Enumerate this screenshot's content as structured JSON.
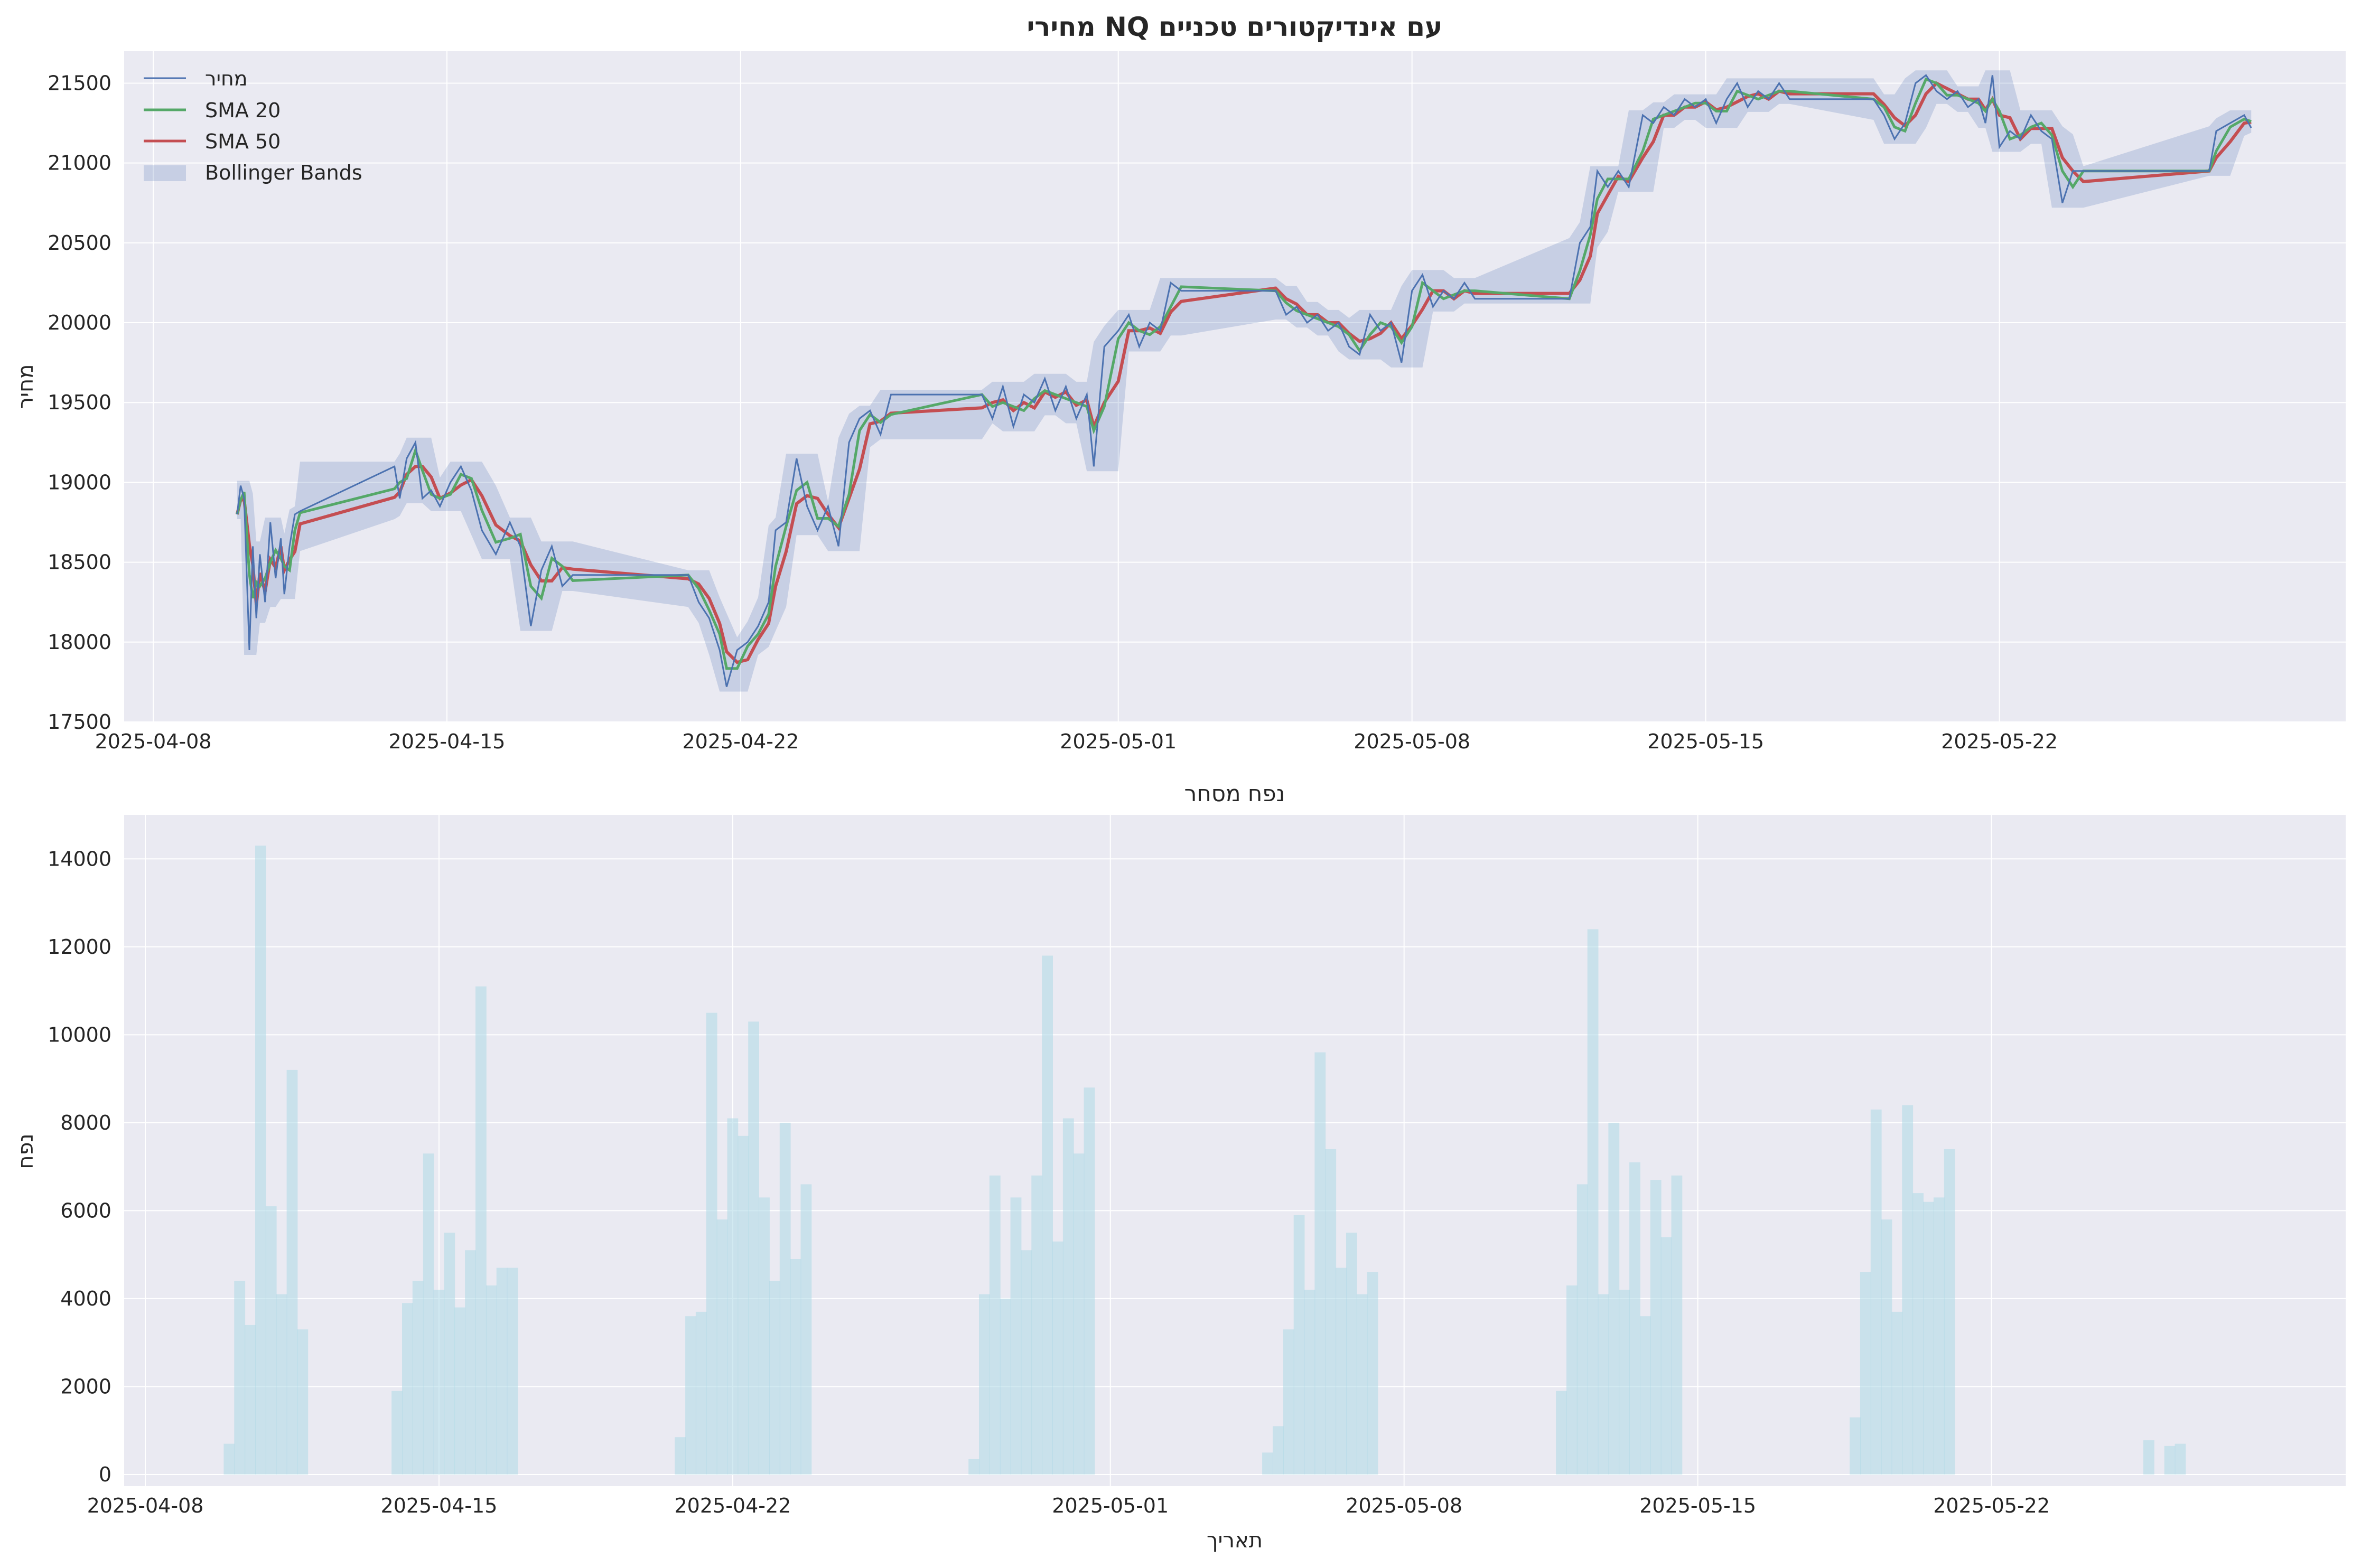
{
  "chart_data": [
    {
      "type": "line",
      "title": "מחירי NQ עם אינדיקטורים טכניים",
      "xlabel": "",
      "ylabel": "מחיר",
      "x_range": [
        "2025-04-08",
        "2025-05-30"
      ],
      "ylim": [
        17500,
        21700
      ],
      "x_ticks": [
        "2025-04-08",
        "2025-04-15",
        "2025-04-22",
        "2025-05-01",
        "2025-05-08",
        "2025-05-15",
        "2025-05-22"
      ],
      "y_ticks": [
        17500,
        18000,
        18500,
        19000,
        19500,
        20000,
        20500,
        21000,
        21500
      ],
      "grid": true,
      "legend_position": "top-left",
      "legend": [
        "מחיר",
        "SMA 20",
        "SMA 50",
        "Bollinger Bands"
      ],
      "colors": {
        "price": "#4c72b0",
        "sma20": "#55a868",
        "sma50": "#c44e52",
        "bands": "#4c72b0",
        "background": "#eaeaf2"
      },
      "price_points": [
        [
          "2025-04-10 00:00",
          18800
        ],
        [
          "2025-04-10 02:00",
          18980
        ],
        [
          "2025-04-10 04:00",
          18900
        ],
        [
          "2025-04-10 07:00",
          17950
        ],
        [
          "2025-04-10 09:00",
          18600
        ],
        [
          "2025-04-10 11:00",
          18150
        ],
        [
          "2025-04-10 13:00",
          18550
        ],
        [
          "2025-04-10 16:00",
          18250
        ],
        [
          "2025-04-10 19:00",
          18750
        ],
        [
          "2025-04-10 22:00",
          18400
        ],
        [
          "2025-04-11 01:00",
          18650
        ],
        [
          "2025-04-11 03:00",
          18300
        ],
        [
          "2025-04-11 06:00",
          18600
        ],
        [
          "2025-04-11 09:00",
          18800
        ],
        [
          "2025-04-11 12:00",
          18820
        ],
        [
          "2025-04-13 18:00",
          19100
        ],
        [
          "2025-04-13 21:00",
          18900
        ],
        [
          "2025-04-14 01:00",
          19150
        ],
        [
          "2025-04-14 06:00",
          19250
        ],
        [
          "2025-04-14 10:00",
          18900
        ],
        [
          "2025-04-14 15:00",
          18950
        ],
        [
          "2025-04-14 20:00",
          18850
        ],
        [
          "2025-04-15 02:00",
          19000
        ],
        [
          "2025-04-15 08:00",
          19100
        ],
        [
          "2025-04-15 14:00",
          18950
        ],
        [
          "2025-04-15 20:00",
          18700
        ],
        [
          "2025-04-16 04:00",
          18550
        ],
        [
          "2025-04-16 12:00",
          18750
        ],
        [
          "2025-04-16 18:00",
          18600
        ],
        [
          "2025-04-17 00:00",
          18100
        ],
        [
          "2025-04-17 06:00",
          18450
        ],
        [
          "2025-04-17 12:00",
          18600
        ],
        [
          "2025-04-17 18:00",
          18350
        ],
        [
          "2025-04-18 00:00",
          18420
        ],
        [
          "2025-04-20 18:00",
          18420
        ],
        [
          "2025-04-21 00:00",
          18250
        ],
        [
          "2025-04-21 06:00",
          18150
        ],
        [
          "2025-04-21 12:00",
          17950
        ],
        [
          "2025-04-21 16:00",
          17720
        ],
        [
          "2025-04-21 22:00",
          17950
        ],
        [
          "2025-04-22 04:00",
          18000
        ],
        [
          "2025-04-22 10:00",
          18100
        ],
        [
          "2025-04-22 16:00",
          18250
        ],
        [
          "2025-04-22 20:00",
          18700
        ],
        [
          "2025-04-23 02:00",
          18750
        ],
        [
          "2025-04-23 08:00",
          19150
        ],
        [
          "2025-04-23 14:00",
          18850
        ],
        [
          "2025-04-23 20:00",
          18700
        ],
        [
          "2025-04-24 02:00",
          18850
        ],
        [
          "2025-04-24 08:00",
          18600
        ],
        [
          "2025-04-24 14:00",
          19250
        ],
        [
          "2025-04-24 20:00",
          19400
        ],
        [
          "2025-04-25 02:00",
          19450
        ],
        [
          "2025-04-25 08:00",
          19300
        ],
        [
          "2025-04-25 14:00",
          19550
        ],
        [
          "2025-04-27 18:00",
          19550
        ],
        [
          "2025-04-28 00:00",
          19400
        ],
        [
          "2025-04-28 06:00",
          19600
        ],
        [
          "2025-04-28 12:00",
          19350
        ],
        [
          "2025-04-28 18:00",
          19550
        ],
        [
          "2025-04-29 00:00",
          19500
        ],
        [
          "2025-04-29 06:00",
          19650
        ],
        [
          "2025-04-29 12:00",
          19450
        ],
        [
          "2025-04-29 18:00",
          19600
        ],
        [
          "2025-04-30 00:00",
          19400
        ],
        [
          "2025-04-30 06:00",
          19550
        ],
        [
          "2025-04-30 10:00",
          19100
        ],
        [
          "2025-04-30 16:00",
          19850
        ],
        [
          "2025-05-01 00:00",
          19950
        ],
        [
          "2025-05-01 06:00",
          20050
        ],
        [
          "2025-05-01 12:00",
          19850
        ],
        [
          "2025-05-01 18:00",
          20000
        ],
        [
          "2025-05-02 00:00",
          19950
        ],
        [
          "2025-05-02 06:00",
          20250
        ],
        [
          "2025-05-02 12:00",
          20200
        ],
        [
          "2025-05-04 18:00",
          20200
        ],
        [
          "2025-05-05 00:00",
          20050
        ],
        [
          "2025-05-05 06:00",
          20100
        ],
        [
          "2025-05-05 12:00",
          20000
        ],
        [
          "2025-05-05 18:00",
          20050
        ],
        [
          "2025-05-06 00:00",
          19950
        ],
        [
          "2025-05-06 06:00",
          20000
        ],
        [
          "2025-05-06 12:00",
          19850
        ],
        [
          "2025-05-06 18:00",
          19800
        ],
        [
          "2025-05-07 00:00",
          20050
        ],
        [
          "2025-05-07 06:00",
          19950
        ],
        [
          "2025-05-07 12:00",
          20000
        ],
        [
          "2025-05-07 18:00",
          19750
        ],
        [
          "2025-05-08 00:00",
          20200
        ],
        [
          "2025-05-08 06:00",
          20300
        ],
        [
          "2025-05-08 12:00",
          20100
        ],
        [
          "2025-05-08 18:00",
          20200
        ],
        [
          "2025-05-09 00:00",
          20150
        ],
        [
          "2025-05-09 06:00",
          20250
        ],
        [
          "2025-05-09 12:00",
          20150
        ],
        [
          "2025-05-11 18:00",
          20150
        ],
        [
          "2025-05-12 00:00",
          20500
        ],
        [
          "2025-05-12 06:00",
          20600
        ],
        [
          "2025-05-12 10:00",
          20950
        ],
        [
          "2025-05-12 16:00",
          20850
        ],
        [
          "2025-05-12 22:00",
          20950
        ],
        [
          "2025-05-13 04:00",
          20850
        ],
        [
          "2025-05-13 12:00",
          21300
        ],
        [
          "2025-05-13 18:00",
          21250
        ],
        [
          "2025-05-14 00:00",
          21350
        ],
        [
          "2025-05-14 06:00",
          21300
        ],
        [
          "2025-05-14 12:00",
          21400
        ],
        [
          "2025-05-14 18:00",
          21350
        ],
        [
          "2025-05-15 00:00",
          21400
        ],
        [
          "2025-05-15 06:00",
          21250
        ],
        [
          "2025-05-15 12:00",
          21400
        ],
        [
          "2025-05-15 18:00",
          21500
        ],
        [
          "2025-05-16 00:00",
          21350
        ],
        [
          "2025-05-16 06:00",
          21450
        ],
        [
          "2025-05-16 12:00",
          21400
        ],
        [
          "2025-05-16 18:00",
          21500
        ],
        [
          "2025-05-17 00:00",
          21400
        ],
        [
          "2025-05-19 00:00",
          21400
        ],
        [
          "2025-05-19 06:00",
          21300
        ],
        [
          "2025-05-19 12:00",
          21150
        ],
        [
          "2025-05-19 18:00",
          21250
        ],
        [
          "2025-05-20 00:00",
          21500
        ],
        [
          "2025-05-20 06:00",
          21550
        ],
        [
          "2025-05-20 12:00",
          21450
        ],
        [
          "2025-05-20 18:00",
          21400
        ],
        [
          "2025-05-21 00:00",
          21450
        ],
        [
          "2025-05-21 06:00",
          21350
        ],
        [
          "2025-05-21 12:00",
          21400
        ],
        [
          "2025-05-21 16:00",
          21250
        ],
        [
          "2025-05-21 20:00",
          21550
        ],
        [
          "2025-05-22 00:00",
          21100
        ],
        [
          "2025-05-22 06:00",
          21200
        ],
        [
          "2025-05-22 12:00",
          21150
        ],
        [
          "2025-05-22 18:00",
          21300
        ],
        [
          "2025-05-23 00:00",
          21200
        ],
        [
          "2025-05-23 06:00",
          21150
        ],
        [
          "2025-05-23 12:00",
          20750
        ],
        [
          "2025-05-23 18:00",
          20950
        ],
        [
          "2025-05-24 00:00",
          20950
        ],
        [
          "2025-05-27 00:00",
          20950
        ],
        [
          "2025-05-27 04:00",
          21200
        ],
        [
          "2025-05-27 12:00",
          21250
        ],
        [
          "2025-05-27 20:00",
          21300
        ],
        [
          "2025-05-28 00:00",
          21220
        ]
      ]
    },
    {
      "type": "bar",
      "title": "נפח מסחר",
      "xlabel": "תאריך",
      "ylabel": "נפח",
      "x_range": [
        "2025-04-08",
        "2025-05-30"
      ],
      "ylim": [
        0,
        15000
      ],
      "x_ticks": [
        "2025-04-08",
        "2025-04-15",
        "2025-04-22",
        "2025-05-01",
        "2025-05-08",
        "2025-05-15",
        "2025-05-22"
      ],
      "y_ticks": [
        0,
        2000,
        4000,
        6000,
        8000,
        10000,
        12000,
        14000
      ],
      "grid": true,
      "colors": {
        "bars": "#add8e6",
        "background": "#eaeaf2"
      },
      "volume_points": [
        [
          "2025-04-10 00:00",
          700
        ],
        [
          "2025-04-10 06:00",
          4400
        ],
        [
          "2025-04-10 12:00",
          3400
        ],
        [
          "2025-04-10 18:00",
          14300
        ],
        [
          "2025-04-11 00:00",
          6100
        ],
        [
          "2025-04-11 06:00",
          4100
        ],
        [
          "2025-04-11 12:00",
          9200
        ],
        [
          "2025-04-11 18:00",
          3300
        ],
        [
          "2025-04-14 00:00",
          1900
        ],
        [
          "2025-04-14 06:00",
          3900
        ],
        [
          "2025-04-14 12:00",
          4400
        ],
        [
          "2025-04-14 18:00",
          7300
        ],
        [
          "2025-04-15 00:00",
          4200
        ],
        [
          "2025-04-15 06:00",
          5500
        ],
        [
          "2025-04-15 12:00",
          3800
        ],
        [
          "2025-04-15 18:00",
          5100
        ],
        [
          "2025-04-16 00:00",
          11100
        ],
        [
          "2025-04-16 06:00",
          4300
        ],
        [
          "2025-04-16 12:00",
          4700
        ],
        [
          "2025-04-16 18:00",
          4700
        ],
        [
          "2025-04-20 18:00",
          850
        ],
        [
          "2025-04-21 00:00",
          3600
        ],
        [
          "2025-04-21 06:00",
          3700
        ],
        [
          "2025-04-21 12:00",
          10500
        ],
        [
          "2025-04-21 18:00",
          5800
        ],
        [
          "2025-04-22 00:00",
          8100
        ],
        [
          "2025-04-22 06:00",
          7700
        ],
        [
          "2025-04-22 12:00",
          10300
        ],
        [
          "2025-04-22 18:00",
          6300
        ],
        [
          "2025-04-23 00:00",
          4400
        ],
        [
          "2025-04-23 06:00",
          8000
        ],
        [
          "2025-04-23 12:00",
          4900
        ],
        [
          "2025-04-23 18:00",
          6600
        ],
        [
          "2025-04-27 18:00",
          350
        ],
        [
          "2025-04-28 00:00",
          4100
        ],
        [
          "2025-04-28 06:00",
          6800
        ],
        [
          "2025-04-28 12:00",
          4000
        ],
        [
          "2025-04-28 18:00",
          6300
        ],
        [
          "2025-04-29 00:00",
          5100
        ],
        [
          "2025-04-29 06:00",
          6800
        ],
        [
          "2025-04-29 12:00",
          11800
        ],
        [
          "2025-04-29 18:00",
          5300
        ],
        [
          "2025-04-30 00:00",
          8100
        ],
        [
          "2025-04-30 06:00",
          7300
        ],
        [
          "2025-04-30 12:00",
          8800
        ],
        [
          "2025-05-04 18:00",
          500
        ],
        [
          "2025-05-05 00:00",
          1100
        ],
        [
          "2025-05-05 06:00",
          3300
        ],
        [
          "2025-05-05 12:00",
          5900
        ],
        [
          "2025-05-05 18:00",
          4200
        ],
        [
          "2025-05-06 00:00",
          9600
        ],
        [
          "2025-05-06 06:00",
          7400
        ],
        [
          "2025-05-06 12:00",
          4700
        ],
        [
          "2025-05-06 18:00",
          5500
        ],
        [
          "2025-05-07 00:00",
          4100
        ],
        [
          "2025-05-07 06:00",
          4600
        ],
        [
          "2025-05-11 18:00",
          1900
        ],
        [
          "2025-05-12 00:00",
          4300
        ],
        [
          "2025-05-12 06:00",
          6600
        ],
        [
          "2025-05-12 12:00",
          12400
        ],
        [
          "2025-05-12 18:00",
          4100
        ],
        [
          "2025-05-13 00:00",
          8000
        ],
        [
          "2025-05-13 06:00",
          4200
        ],
        [
          "2025-05-13 12:00",
          7100
        ],
        [
          "2025-05-13 18:00",
          3600
        ],
        [
          "2025-05-14 00:00",
          6700
        ],
        [
          "2025-05-14 06:00",
          5400
        ],
        [
          "2025-05-14 12:00",
          6800
        ],
        [
          "2025-05-18 18:00",
          1300
        ],
        [
          "2025-05-19 00:00",
          4600
        ],
        [
          "2025-05-19 06:00",
          8300
        ],
        [
          "2025-05-19 12:00",
          5800
        ],
        [
          "2025-05-19 18:00",
          3700
        ],
        [
          "2025-05-20 00:00",
          8400
        ],
        [
          "2025-05-20 06:00",
          6400
        ],
        [
          "2025-05-20 12:00",
          6200
        ],
        [
          "2025-05-20 18:00",
          6300
        ],
        [
          "2025-05-21 00:00",
          7400
        ],
        [
          "2025-05-25 18:00",
          780
        ],
        [
          "2025-05-26 06:00",
          650
        ],
        [
          "2025-05-26 12:00",
          700
        ]
      ]
    }
  ]
}
